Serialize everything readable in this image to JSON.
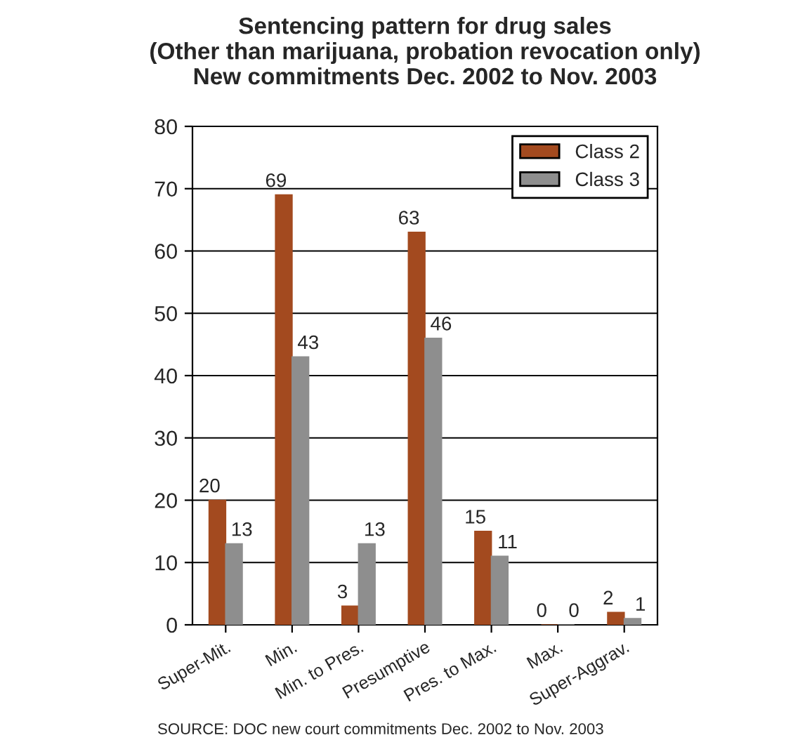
{
  "chart_data": {
    "type": "bar",
    "title": "Sentencing pattern for drug sales\n(Other than marijuana, probation revocation only)\nNew commitments Dec. 2002 to Nov. 2003",
    "categories": [
      "Super-Mit.",
      "Min.",
      "Min. to Pres.",
      "Presumptive",
      "Pres. to Max.",
      "Max.",
      "Super-Aggrav."
    ],
    "series": [
      {
        "name": "Class 2",
        "color": "#a34a1f",
        "values": [
          20,
          69,
          3,
          63,
          15,
          0,
          2
        ]
      },
      {
        "name": "Class 3",
        "color": "#8e8e8e",
        "values": [
          13,
          43,
          13,
          46,
          11,
          0,
          1
        ]
      }
    ],
    "ylim": [
      0,
      80
    ],
    "yticks": [
      0,
      10,
      20,
      30,
      40,
      50,
      60,
      70,
      80
    ],
    "grid": "y",
    "legend": "top right",
    "data_labels": true,
    "annotations": [
      "SOURCE: DOC new court commitments Dec. 2002 to Nov. 2003"
    ]
  }
}
